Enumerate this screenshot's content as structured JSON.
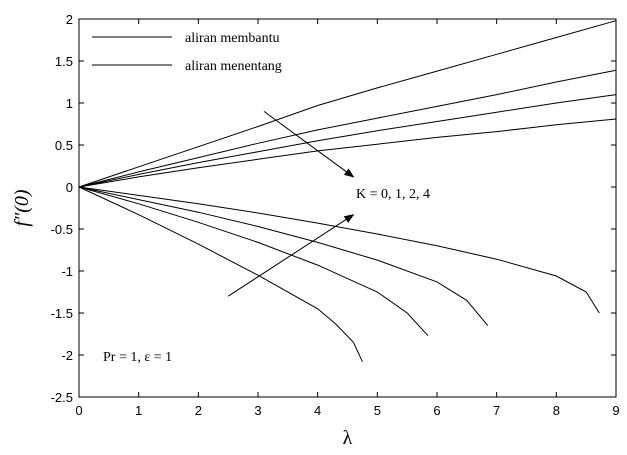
{
  "chart_data": {
    "type": "line",
    "xlabel": "λ",
    "ylabel": "f″(0)",
    "xlim": [
      0,
      9
    ],
    "ylim": [
      -2.5,
      2
    ],
    "xticks": [
      0,
      1,
      2,
      3,
      4,
      5,
      6,
      7,
      8,
      9
    ],
    "yticks": [
      -2.5,
      -2,
      -1.5,
      -1,
      -0.5,
      0,
      0.5,
      1,
      1.5,
      2
    ],
    "xtick_labels": [
      "0",
      "1",
      "2",
      "3",
      "4",
      "5",
      "6",
      "7",
      "8",
      "9"
    ],
    "ytick_labels": [
      "-2.5",
      "-2",
      "-1.5",
      "-1",
      "-0.5",
      "0",
      "0.5",
      "1",
      "1.5",
      "2"
    ],
    "grid": false,
    "legend_position": "top-left",
    "legend": [
      {
        "label": "aliran membantu"
      },
      {
        "label": "aliran menentang"
      }
    ],
    "series": [
      {
        "group": "aliran membantu",
        "x": [
          0,
          1,
          2,
          3,
          4,
          5,
          6,
          7,
          8,
          9
        ],
        "y": [
          0,
          0.24,
          0.48,
          0.72,
          0.97,
          1.18,
          1.38,
          1.58,
          1.78,
          1.98
        ]
      },
      {
        "group": "aliran membantu",
        "x": [
          0,
          1,
          2,
          3,
          4,
          5,
          6,
          7,
          8,
          9
        ],
        "y": [
          0,
          0.18,
          0.35,
          0.52,
          0.68,
          0.82,
          0.96,
          1.1,
          1.25,
          1.39
        ]
      },
      {
        "group": "aliran membantu",
        "x": [
          0,
          1,
          2,
          3,
          4,
          5,
          6,
          7,
          8,
          9
        ],
        "y": [
          0,
          0.15,
          0.29,
          0.42,
          0.55,
          0.67,
          0.78,
          0.89,
          1.0,
          1.1
        ]
      },
      {
        "group": "aliran membantu",
        "x": [
          0,
          1,
          2,
          3,
          4,
          5,
          6,
          7,
          8,
          9
        ],
        "y": [
          0,
          0.12,
          0.23,
          0.33,
          0.43,
          0.51,
          0.59,
          0.66,
          0.74,
          0.81
        ]
      },
      {
        "group": "aliran menentang",
        "x": [
          0,
          1,
          2,
          3,
          4,
          4.3,
          4.6,
          4.75
        ],
        "y": [
          0,
          -0.33,
          -0.68,
          -1.05,
          -1.45,
          -1.63,
          -1.85,
          -2.08
        ]
      },
      {
        "group": "aliran menentang",
        "x": [
          0,
          1,
          2,
          3,
          4,
          5,
          5.5,
          5.85
        ],
        "y": [
          0,
          -0.2,
          -0.42,
          -0.66,
          -0.93,
          -1.25,
          -1.5,
          -1.77
        ]
      },
      {
        "group": "aliran menentang",
        "x": [
          0,
          1,
          2,
          3,
          4,
          5,
          6,
          6.5,
          6.85
        ],
        "y": [
          0,
          -0.15,
          -0.3,
          -0.47,
          -0.66,
          -0.87,
          -1.13,
          -1.35,
          -1.65
        ]
      },
      {
        "group": "aliran menentang",
        "x": [
          0,
          1,
          2,
          3,
          4,
          5,
          6,
          7,
          8,
          8.5,
          8.72
        ],
        "y": [
          0,
          -0.1,
          -0.2,
          -0.31,
          -0.43,
          -0.56,
          -0.7,
          -0.86,
          -1.06,
          -1.25,
          -1.5
        ]
      }
    ],
    "annotations": {
      "k_values": "K = 0, 1, 2, 4",
      "params": "Pr = 1, ε = 1"
    },
    "arrows": [
      {
        "from": [
          3.1,
          0.9
        ],
        "to": [
          4.6,
          0.12
        ]
      },
      {
        "from": [
          2.5,
          -1.3
        ],
        "to": [
          4.6,
          -0.33
        ]
      }
    ]
  }
}
